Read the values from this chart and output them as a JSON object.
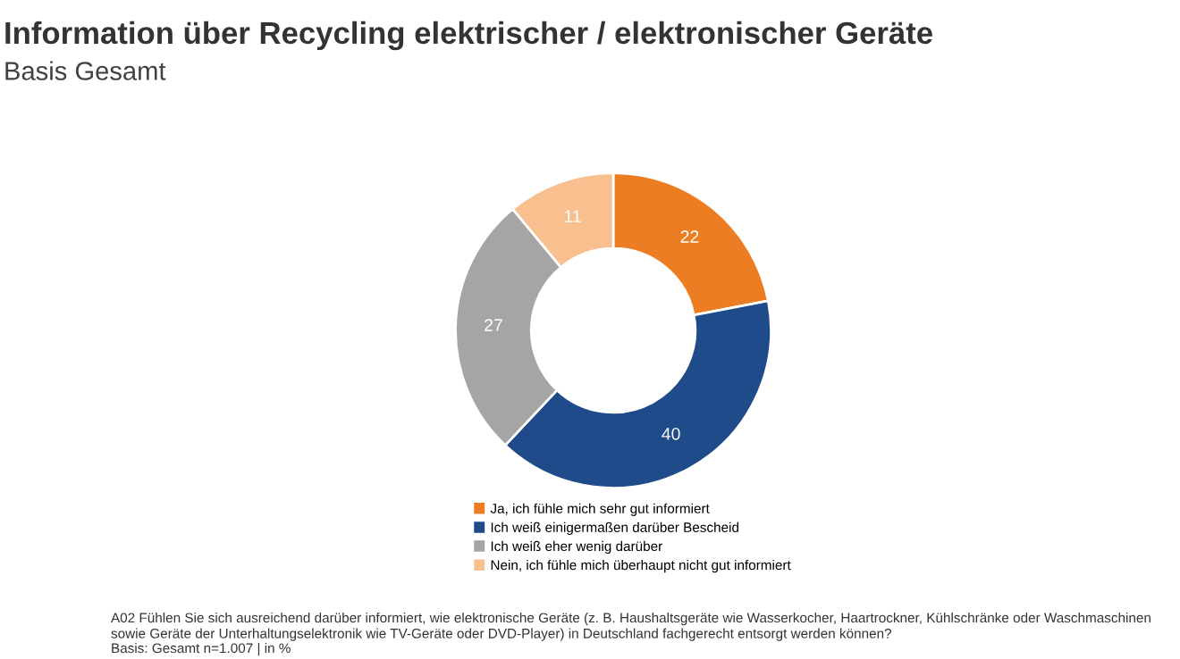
{
  "chart_data": {
    "type": "donut",
    "title": "Information über Recycling elektrischer / elektronischer Geräte",
    "subtitle": "Basis Gesamt",
    "categories": [
      "Ja, ich fühle mich sehr gut informiert",
      "Ich weiß einigermaßen darüber Bescheid",
      "Ich weiß eher wenig darüber",
      "Nein, ich fühle mich überhaupt nicht gut informiert"
    ],
    "values": [
      22,
      40,
      27,
      11
    ],
    "colors": [
      "#ed7d22",
      "#1f4b8a",
      "#a5a5a5",
      "#f8c08e"
    ],
    "data_labels": true,
    "legend": "bottom",
    "annotations": [
      "A02 Fühlen Sie sich ausreichend darüber informiert, wie elektronische Geräte (z. B. Haushaltsgeräte wie Wasserkocher, Haartrockner, Kühlschränke oder Waschmaschinen\nsowie Geräte der Unterhaltungselektronik wie TV-Geräte oder DVD-Player) in Deutschland fachgerecht entsorgt werden können?",
      "Basis: Gesamt n=1.007 | in %"
    ]
  }
}
